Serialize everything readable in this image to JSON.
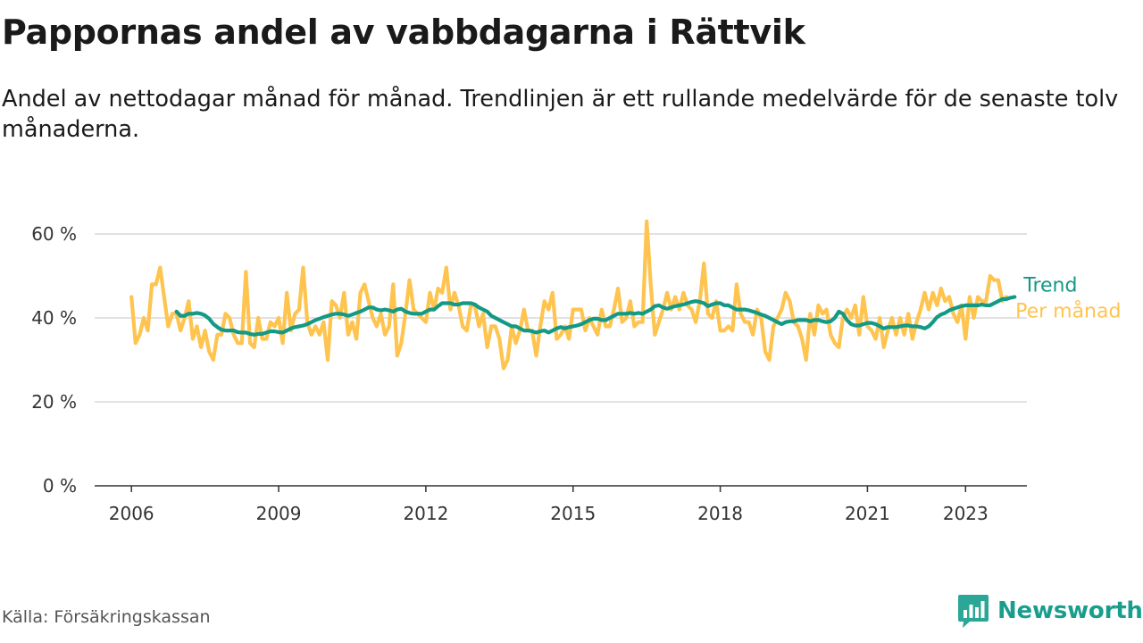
{
  "header": {
    "title": "Pappornas andel av vabbdagarna i Rättvik",
    "subtitle": "Andel av nettodagar månad för månad. Trendlinjen är ett rullande medelvärde för de senaste tolv månaderna."
  },
  "footer": {
    "source": "Källa: Försäkringskassan",
    "brand": "Newsworthy"
  },
  "colors": {
    "monthly": "#fec44f",
    "trend": "#149985",
    "grid": "#d9d9d9",
    "axis": "#333333",
    "brand": "#199e8d"
  },
  "chart_data": {
    "type": "line",
    "title": "Pappornas andel av vabbdagarna i Rättvik",
    "xlabel": "",
    "ylabel": "",
    "x_ticks": [
      "2006",
      "2009",
      "2012",
      "2015",
      "2018",
      "2021",
      "2023"
    ],
    "y_ticks": [
      "0 %",
      "20 %",
      "40 %",
      "60 %"
    ],
    "ylim": [
      0,
      65
    ],
    "xlim": [
      "2006-01",
      "2023-05"
    ],
    "grid": true,
    "legend": "right-end",
    "series": [
      {
        "name": "Per månad",
        "start": "2006-01",
        "values": [
          45,
          34,
          36,
          40,
          37,
          48,
          48,
          52,
          45,
          38,
          41,
          41,
          37,
          40,
          44,
          35,
          38,
          33,
          37,
          32,
          30,
          36,
          36,
          41,
          40,
          36,
          34,
          34,
          51,
          34,
          33,
          40,
          35,
          35,
          39,
          38,
          40,
          34,
          46,
          37,
          41,
          42,
          52,
          39,
          36,
          38,
          36,
          39,
          30,
          44,
          43,
          40,
          46,
          36,
          39,
          35,
          46,
          48,
          44,
          40,
          38,
          41,
          36,
          38,
          48,
          31,
          34,
          41,
          49,
          42,
          41,
          40,
          39,
          46,
          42,
          47,
          46,
          52,
          42,
          46,
          43,
          38,
          37,
          43,
          43,
          38,
          41,
          33,
          38,
          38,
          35,
          28,
          30,
          38,
          34,
          37,
          42,
          37,
          37,
          31,
          38,
          44,
          42,
          46,
          35,
          36,
          38,
          35,
          42,
          42,
          42,
          37,
          40,
          38,
          36,
          42,
          38,
          38,
          42,
          47,
          39,
          40,
          44,
          38,
          39,
          39,
          63,
          48,
          36,
          39,
          42,
          46,
          42,
          45,
          42,
          46,
          43,
          42,
          39,
          44,
          53,
          41,
          40,
          44,
          37,
          37,
          38,
          37,
          48,
          41,
          39,
          39,
          36,
          42,
          40,
          32,
          30,
          38,
          40,
          42,
          46,
          44,
          39,
          38,
          35,
          30,
          41,
          36,
          43,
          41,
          42,
          36,
          34,
          33,
          40,
          42,
          40,
          43,
          36,
          45,
          38,
          37,
          35,
          40,
          33,
          37,
          40,
          36,
          40,
          36,
          41,
          35,
          39,
          42,
          46,
          42,
          46,
          43,
          47,
          44,
          45,
          41,
          39,
          43,
          35,
          45,
          40,
          45,
          44,
          44,
          50,
          49,
          49,
          44,
          45
        ]
      },
      {
        "name": "Trend",
        "start": "2006-12",
        "values": [
          41.5,
          40.5,
          40.5,
          41,
          41,
          41.2,
          41,
          40.6,
          39.8,
          38.6,
          37.8,
          37.2,
          37,
          37,
          37,
          36.6,
          36.5,
          36.5,
          36.2,
          36,
          36.2,
          36.2,
          36.5,
          36.8,
          36.8,
          36.6,
          36.5,
          37,
          37.5,
          37.8,
          38,
          38.2,
          38.5,
          39,
          39.5,
          39.8,
          40.2,
          40.5,
          40.8,
          41,
          41,
          40.8,
          40.5,
          40.8,
          41.2,
          41.5,
          42,
          42.5,
          42.5,
          42,
          41.8,
          42,
          41.8,
          41.5,
          42,
          42.2,
          41.5,
          41.2,
          41,
          41,
          41,
          41.5,
          42,
          42,
          42.8,
          43.5,
          43.5,
          43.5,
          43.2,
          43.2,
          43.5,
          43.5,
          43.5,
          43.2,
          42.5,
          42,
          41.5,
          40.5,
          40,
          39.5,
          39,
          38.5,
          38,
          38,
          37.5,
          37,
          37,
          36.8,
          36.5,
          36.8,
          37,
          36.5,
          37,
          37.5,
          37.8,
          37.5,
          37.8,
          38,
          38.2,
          38.5,
          39,
          39.5,
          39.8,
          39.8,
          39.5,
          39.5,
          40,
          40.5,
          41,
          41,
          41,
          41.2,
          41,
          41.2,
          41,
          41.5,
          42,
          42.8,
          43,
          42.5,
          42.2,
          42.5,
          42.8,
          43,
          43.2,
          43.5,
          43.8,
          44,
          43.8,
          43.5,
          42.8,
          43.2,
          43.5,
          43.5,
          43,
          43,
          42.5,
          42,
          42,
          42,
          41.8,
          41.5,
          41.2,
          40.8,
          40.5,
          40,
          39.5,
          39,
          38.5,
          39,
          39.2,
          39.2,
          39.5,
          39.5,
          39.5,
          39.2,
          39.5,
          39.5,
          39.2,
          39,
          39.2,
          40,
          41.5,
          41,
          39.5,
          38.5,
          38.2,
          38.2,
          38.5,
          38.8,
          38.8,
          38.5,
          38,
          37.5,
          37.8,
          37.8,
          37.8,
          38,
          38.2,
          38.2,
          38,
          38,
          37.8,
          37.5,
          38,
          39,
          40.2,
          40.8,
          41.2,
          41.8,
          42.2,
          42.5,
          42.8,
          43,
          43,
          43,
          43,
          43.2,
          43,
          43,
          43.5,
          44,
          44.5,
          44.5,
          44.8,
          45
        ]
      }
    ]
  }
}
